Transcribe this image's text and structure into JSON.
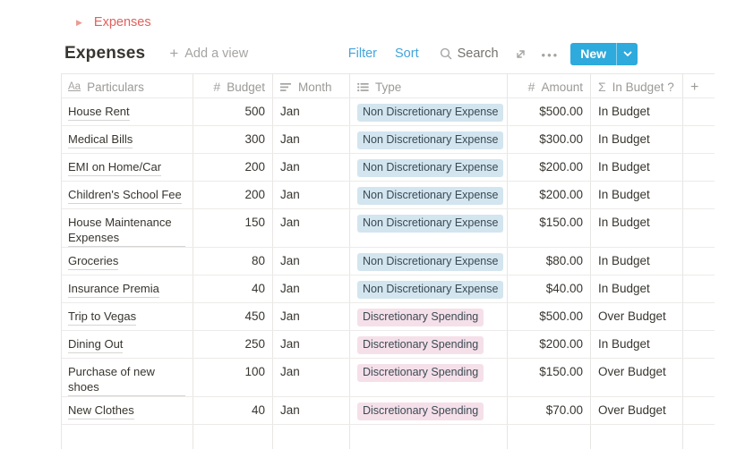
{
  "breadcrumb": {
    "label": "Expenses"
  },
  "header": {
    "title": "Expenses",
    "add_view_label": "Add a view"
  },
  "toolbar": {
    "filter_label": "Filter",
    "sort_label": "Sort",
    "search_label": "Search",
    "more_label": "•••",
    "new_label": "New"
  },
  "colors": {
    "accent_blue": "#2EAADC",
    "toolbar_link_blue": "#44A4DB",
    "breadcrumb_red": "#E2605C",
    "tag_blue_bg": "#D3E5EF",
    "tag_pink_bg": "#F5E0E9",
    "text_dark": "#37352F",
    "header_gray": "#9B9A97",
    "border_gray": "#E7E6E4"
  },
  "table": {
    "columns": [
      {
        "id": "particulars",
        "icon": "text-icon",
        "label": "Particulars"
      },
      {
        "id": "budget",
        "icon": "number-icon",
        "label": "Budget"
      },
      {
        "id": "month",
        "icon": "select-icon",
        "label": "Month"
      },
      {
        "id": "type",
        "icon": "multiselect-icon",
        "label": "Type"
      },
      {
        "id": "amount",
        "icon": "number-icon",
        "label": "Amount"
      },
      {
        "id": "in-budget",
        "icon": "formula-icon",
        "label": "In Budget ?"
      },
      {
        "id": "add-column",
        "icon": "plus-icon",
        "label": ""
      }
    ],
    "rows": [
      {
        "particulars": "House Rent",
        "budget": "500",
        "month": "Jan",
        "type": "Non Discretionary Expense",
        "type_color": "blue",
        "amount": "$500.00",
        "in_budget": "In Budget"
      },
      {
        "particulars": "Medical Bills",
        "budget": "300",
        "month": "Jan",
        "type": "Non Discretionary Expense",
        "type_color": "blue",
        "amount": "$300.00",
        "in_budget": "In Budget"
      },
      {
        "particulars": "EMI on Home/Car",
        "budget": "200",
        "month": "Jan",
        "type": "Non Discretionary Expense",
        "type_color": "blue",
        "amount": "$200.00",
        "in_budget": "In Budget"
      },
      {
        "particulars": "Children's School Fee",
        "budget": "200",
        "month": "Jan",
        "type": "Non Discretionary Expense",
        "type_color": "blue",
        "amount": "$200.00",
        "in_budget": "In Budget"
      },
      {
        "particulars": "House Maintenance Expenses",
        "budget": "150",
        "month": "Jan",
        "type": "Non Discretionary Expense",
        "type_color": "blue",
        "amount": "$150.00",
        "in_budget": "In Budget"
      },
      {
        "particulars": "Groceries",
        "budget": "80",
        "month": "Jan",
        "type": "Non Discretionary Expense",
        "type_color": "blue",
        "amount": "$80.00",
        "in_budget": "In Budget"
      },
      {
        "particulars": "Insurance Premia",
        "budget": "40",
        "month": "Jan",
        "type": "Non Discretionary Expense",
        "type_color": "blue",
        "amount": "$40.00",
        "in_budget": "In Budget"
      },
      {
        "particulars": "Trip to Vegas",
        "budget": "450",
        "month": "Jan",
        "type": "Discretionary Spending",
        "type_color": "pink",
        "amount": "$500.00",
        "in_budget": "Over Budget"
      },
      {
        "particulars": "Dining Out",
        "budget": "250",
        "month": "Jan",
        "type": "Discretionary Spending",
        "type_color": "pink",
        "amount": "$200.00",
        "in_budget": "In Budget"
      },
      {
        "particulars": "Purchase of new shoes",
        "budget": "100",
        "month": "Jan",
        "type": "Discretionary Spending",
        "type_color": "pink",
        "amount": "$150.00",
        "in_budget": "Over Budget"
      },
      {
        "particulars": "New Clothes",
        "budget": "40",
        "month": "Jan",
        "type": "Discretionary Spending",
        "type_color": "pink",
        "amount": "$70.00",
        "in_budget": "Over Budget"
      }
    ]
  }
}
